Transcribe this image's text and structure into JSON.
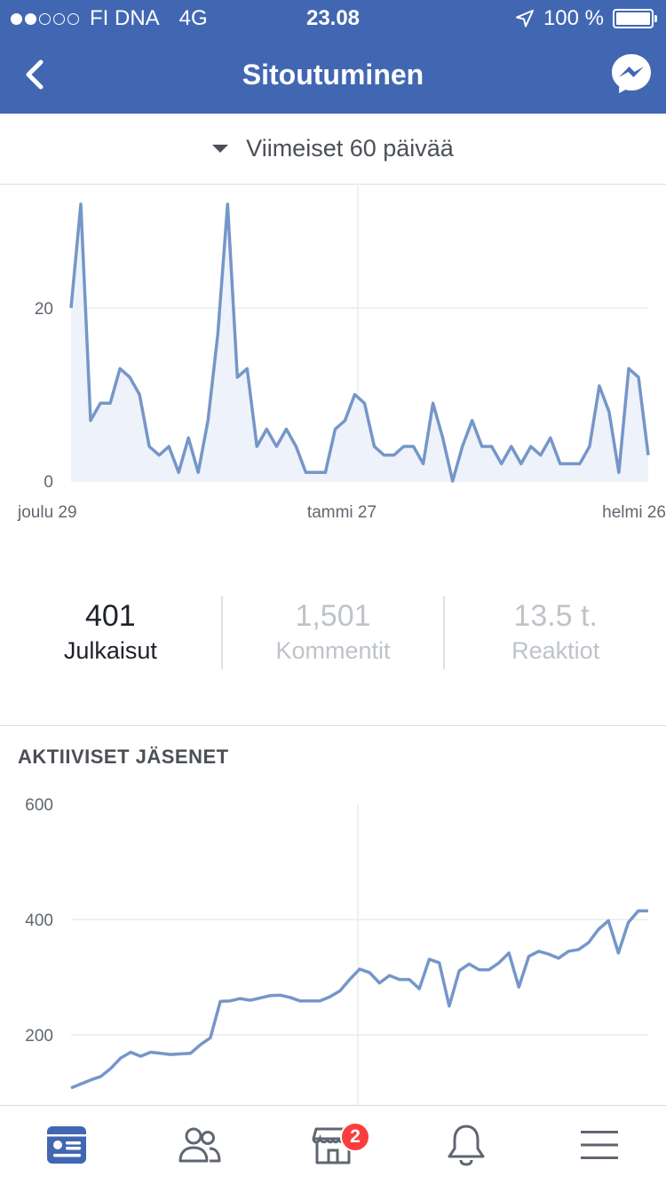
{
  "status_bar": {
    "carrier": "FI DNA",
    "network": "4G",
    "time": "23.08",
    "battery": "100 %",
    "signal_bars_on": 2,
    "signal_bars_total": 5
  },
  "header": {
    "title": "Sitoutuminen",
    "back_icon": "chevron-left-icon",
    "messenger_icon": "messenger-icon",
    "color": "#4267b2"
  },
  "range_selector": {
    "label": "Viimeiset 60 päivää"
  },
  "engagement_chart": {
    "type": "area",
    "y_ticks": [
      "20",
      "0"
    ],
    "x_ticks": [
      "joulu 29",
      "tammi 27",
      "helmi 26"
    ],
    "ylim": [
      0,
      33
    ],
    "color": "#7596c8",
    "values": [
      20,
      32,
      7,
      9,
      9,
      13,
      12,
      10,
      4,
      3,
      4,
      1,
      5,
      1,
      7,
      17,
      32,
      12,
      13,
      4,
      6,
      4,
      6,
      4,
      1,
      1,
      1,
      6,
      7,
      10,
      9,
      4,
      3,
      3,
      4,
      4,
      2,
      9,
      5,
      0,
      4,
      7,
      4,
      4,
      2,
      4,
      2,
      4,
      3,
      5,
      2,
      2,
      2,
      4,
      11,
      8,
      1,
      13,
      12,
      3
    ]
  },
  "stats": [
    {
      "value": "401",
      "label": "Julkaisut"
    },
    {
      "value": "1,501",
      "label": "Kommentit"
    },
    {
      "value": "13.5 t.",
      "label": "Reaktiot"
    }
  ],
  "active_members": {
    "title": "AKTIIVISET JÄSENET",
    "chart_data": {
      "type": "line",
      "y_ticks": [
        "600",
        "400",
        "200"
      ],
      "ylim": [
        0,
        600
      ],
      "color": "#7596c8",
      "values": [
        108,
        115,
        122,
        128,
        142,
        160,
        170,
        163,
        170,
        168,
        166,
        167,
        168,
        183,
        195,
        258,
        259,
        263,
        260,
        264,
        268,
        269,
        265,
        259,
        259,
        259,
        266,
        276,
        296,
        314,
        308,
        290,
        303,
        296,
        296,
        280,
        331,
        325,
        250,
        311,
        323,
        313,
        313,
        325,
        342,
        283,
        336,
        345,
        340,
        333,
        345,
        348,
        360,
        383,
        398,
        342,
        395,
        415,
        415
      ]
    }
  },
  "tabbar": {
    "items": [
      {
        "name": "feed",
        "icon": "feed-icon",
        "active": true
      },
      {
        "name": "groups",
        "icon": "friends-icon",
        "active": false
      },
      {
        "name": "marketplace",
        "icon": "marketplace-icon",
        "active": false,
        "badge": "2"
      },
      {
        "name": "notifications",
        "icon": "bell-icon",
        "active": false
      },
      {
        "name": "menu",
        "icon": "menu-icon",
        "active": false
      }
    ]
  }
}
